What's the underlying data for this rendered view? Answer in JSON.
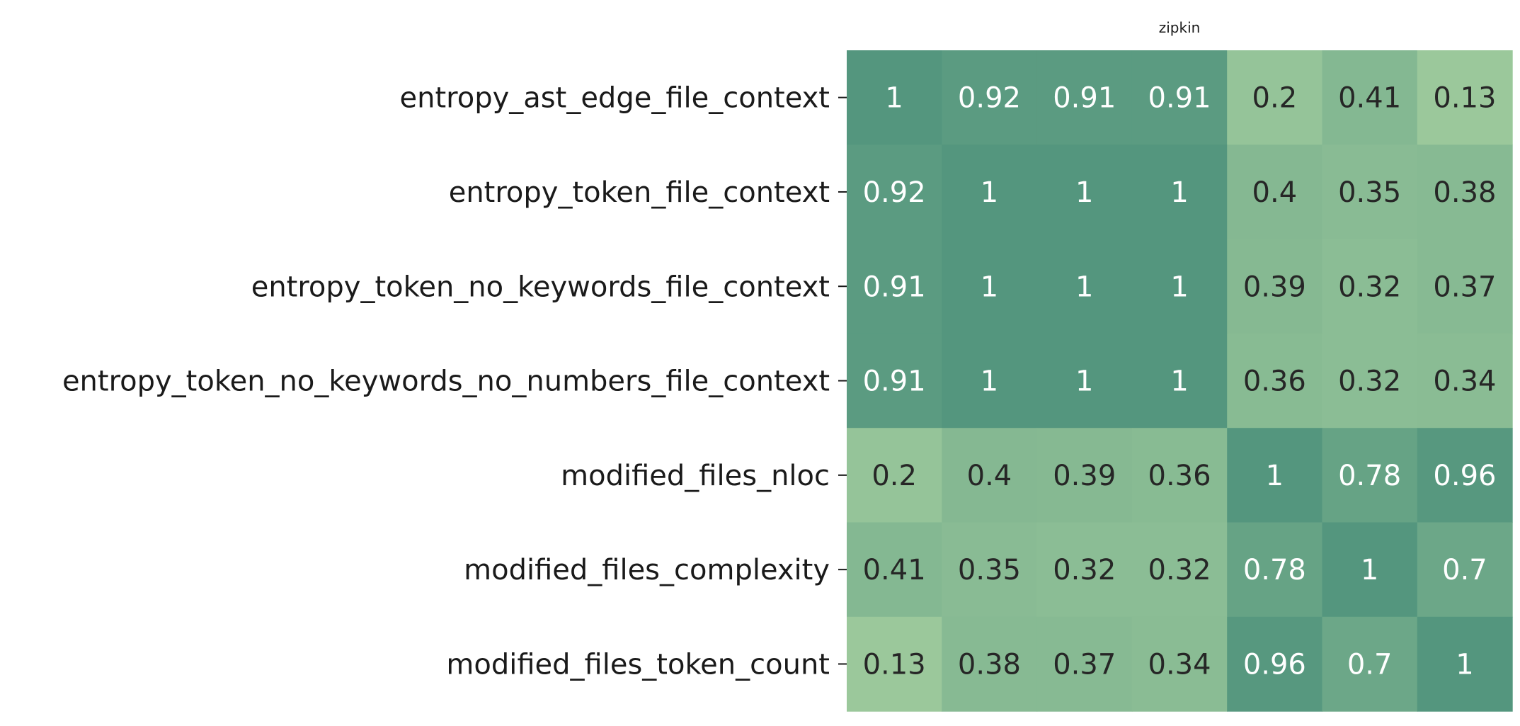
{
  "chart_data": {
    "type": "heatmap",
    "title": "zipkin",
    "xlabel": "",
    "ylabel": "",
    "row_labels": [
      "entropy_ast_edge_file_context",
      "entropy_token_file_context",
      "entropy_token_no_keywords_file_context",
      "entropy_token_no_keywords_no_numbers_file_context",
      "modified_files_nloc",
      "modified_files_complexity",
      "modified_files_token_count"
    ],
    "column_labels": [],
    "values": [
      [
        1,
        0.92,
        0.91,
        0.91,
        0.2,
        0.41,
        0.13
      ],
      [
        0.92,
        1,
        1,
        1,
        0.4,
        0.35,
        0.38
      ],
      [
        0.91,
        1,
        1,
        1,
        0.39,
        0.32,
        0.37
      ],
      [
        0.91,
        1,
        1,
        1,
        0.36,
        0.32,
        0.34
      ],
      [
        0.2,
        0.4,
        0.39,
        0.36,
        1,
        0.78,
        0.96
      ],
      [
        0.41,
        0.35,
        0.32,
        0.32,
        0.78,
        1,
        0.7
      ],
      [
        0.13,
        0.38,
        0.37,
        0.34,
        0.96,
        0.7,
        1
      ]
    ],
    "color_low": "#9bc89b",
    "color_high": "#54967e",
    "text_color_dark": "#262626",
    "text_color_light": "#ffffff",
    "colorbar": false,
    "grid": false
  }
}
